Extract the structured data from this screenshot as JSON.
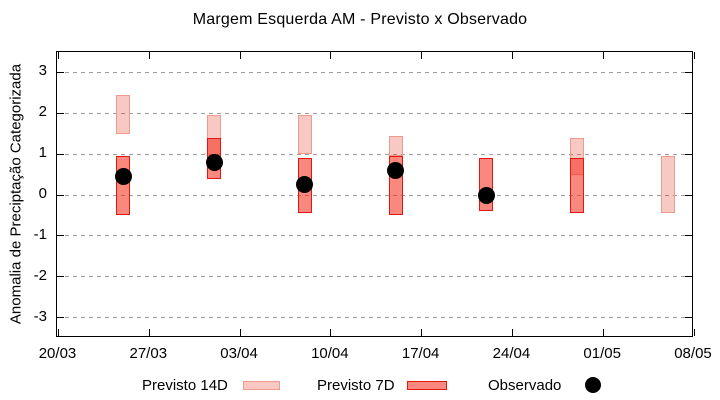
{
  "title": "Margem Esquerda AM - Previsto x Observado",
  "y_axis": {
    "label": "Anomalia de Preciptação Categorizada",
    "ticks": [
      3,
      2,
      1,
      0,
      -1,
      -2,
      -3
    ],
    "range": [
      -3.5,
      3.5
    ]
  },
  "x_axis": {
    "tick_labels": [
      "20/03",
      "27/03",
      "03/04",
      "10/04",
      "17/04",
      "24/04",
      "01/05",
      "08/05"
    ]
  },
  "legend": {
    "position": "bottom",
    "items": [
      {
        "label": "Previsto 14D",
        "swatch": "light-pink-box"
      },
      {
        "label": "Previsto 7D",
        "swatch": "red-box"
      },
      {
        "label": "Observado",
        "swatch": "black-dot"
      }
    ]
  },
  "colors": {
    "p14_fill": "rgba(230,60,40,0.28)",
    "p14_border": "#ef9a8d",
    "p7_fill": "rgba(244,40,21,0.55)",
    "p7_border": "#e2170d",
    "observed": "#000000",
    "grid": "#9e9e9e",
    "frame": "#000000",
    "text": "#000000"
  },
  "chart_data": {
    "type": "bar",
    "subtype": "forecast-range-boxes-with-observed-points",
    "title": "Margem Esquerda AM - Previsto x Observado",
    "xlabel": "",
    "ylabel": "Anomalia de Preciptação Categorizada",
    "ylim": [
      -3.5,
      3.5
    ],
    "y_ticks": [
      3,
      2,
      1,
      0,
      -1,
      -2,
      -3
    ],
    "x_ticks": [
      "20/03",
      "27/03",
      "03/04",
      "10/04",
      "17/04",
      "24/04",
      "01/05",
      "08/05"
    ],
    "x_range_dates": [
      "20/03",
      "08/05"
    ],
    "grid": "horizontal dashed gray gridlines at integer y values",
    "legend_position": "bottom",
    "categories": [
      "25/03",
      "01/04",
      "08/04",
      "15/04",
      "22/04",
      "29/04",
      "06/05"
    ],
    "series": [
      {
        "name": "Previsto 14D",
        "type": "range",
        "ranges": [
          [
            1.5,
            2.45
          ],
          [
            0.95,
            1.95
          ],
          [
            1.0,
            1.95
          ],
          [
            0.95,
            1.45
          ],
          null,
          [
            0.5,
            1.4
          ],
          [
            -0.45,
            0.95
          ]
        ]
      },
      {
        "name": "Previsto 7D",
        "type": "range",
        "ranges": [
          [
            -0.5,
            0.95
          ],
          [
            0.4,
            1.4
          ],
          [
            -0.45,
            0.9
          ],
          [
            -0.5,
            0.95
          ],
          [
            -0.4,
            0.9
          ],
          [
            -0.45,
            0.9
          ],
          null
        ]
      },
      {
        "name": "Observado",
        "type": "scatter",
        "values": [
          0.45,
          0.8,
          0.25,
          0.6,
          -0.02,
          null,
          null
        ]
      }
    ]
  }
}
